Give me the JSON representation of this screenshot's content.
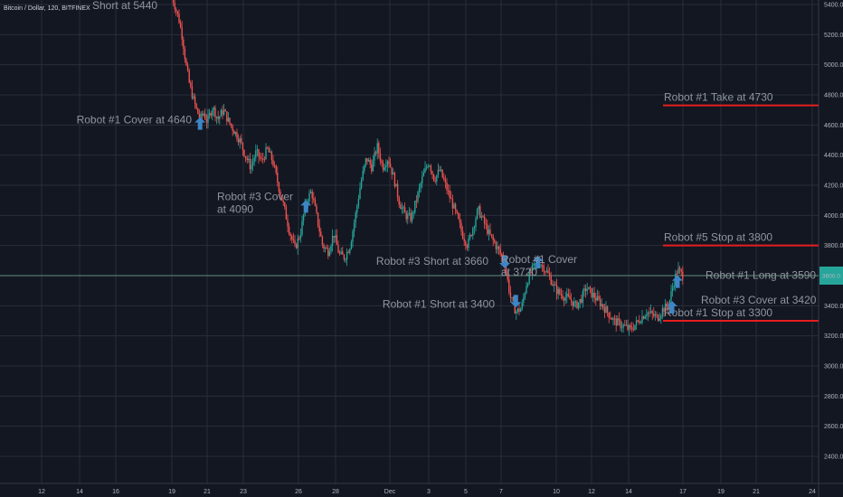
{
  "chart_data": {
    "type": "candlestick",
    "title": "Bitcoin / Dollar, 120, BITFINEX",
    "ylim": [
      2300,
      5600
    ],
    "y_ticks": [
      "5400.0",
      "5200.0",
      "5000.0",
      "4800.0",
      "4600.0",
      "4400.0",
      "4200.0",
      "4000.0",
      "3800.0",
      "3600.0",
      "3400.0",
      "3200.0",
      "3000.0",
      "2800.0",
      "2600.0",
      "2400.0"
    ],
    "x_ticks": [
      "12",
      "14",
      "16",
      "19",
      "21",
      "23",
      "26",
      "28",
      "Dec",
      "3",
      "5",
      "7",
      "10",
      "12",
      "14",
      "17",
      "19",
      "21",
      "24"
    ],
    "current_price": 3600,
    "current_price_label": "3600.0",
    "colors": {
      "bg": "#131722",
      "grid": "#2a2e39",
      "up": "#26a69a",
      "down": "#ef5350",
      "line": "#e61e1e",
      "arrow": "#3d86c6",
      "price_line": "#608f7d"
    },
    "series": [
      {
        "name": "",
        "close_path": [
          [
            19.0,
            5460
          ],
          [
            19.2,
            5380
          ],
          [
            19.4,
            5300
          ],
          [
            19.6,
            5180
          ],
          [
            19.8,
            5000
          ],
          [
            20.0,
            4870
          ],
          [
            20.2,
            4780
          ],
          [
            20.4,
            4700
          ],
          [
            20.6,
            4640
          ],
          [
            20.8,
            4680
          ],
          [
            21.0,
            4620
          ],
          [
            21.3,
            4720
          ],
          [
            21.6,
            4640
          ],
          [
            21.9,
            4700
          ],
          [
            22.2,
            4620
          ],
          [
            22.5,
            4560
          ],
          [
            22.8,
            4500
          ],
          [
            23.1,
            4400
          ],
          [
            23.4,
            4320
          ],
          [
            23.7,
            4420
          ],
          [
            24.0,
            4360
          ],
          [
            24.3,
            4440
          ],
          [
            24.6,
            4360
          ],
          [
            24.9,
            4200
          ],
          [
            25.2,
            4060
          ],
          [
            25.5,
            3900
          ],
          [
            25.8,
            3780
          ],
          [
            26.1,
            3880
          ],
          [
            26.4,
            4090
          ],
          [
            26.7,
            4160
          ],
          [
            27.0,
            3980
          ],
          [
            27.3,
            3800
          ],
          [
            27.6,
            3760
          ],
          [
            27.9,
            3880
          ],
          [
            28.2,
            3740
          ],
          [
            28.5,
            3720
          ],
          [
            28.8,
            3800
          ],
          [
            29.1,
            4000
          ],
          [
            29.4,
            4220
          ],
          [
            29.7,
            4380
          ],
          [
            30.0,
            4320
          ],
          [
            30.3,
            4460
          ],
          [
            30.6,
            4320
          ],
          [
            30.9,
            4380
          ],
          [
            31.2,
            4250
          ],
          [
            31.5,
            4080
          ],
          [
            31.8,
            4000
          ],
          [
            32.1,
            3980
          ],
          [
            32.4,
            4120
          ],
          [
            32.7,
            4260
          ],
          [
            33.0,
            4360
          ],
          [
            33.3,
            4240
          ],
          [
            33.6,
            4300
          ],
          [
            33.9,
            4200
          ],
          [
            34.2,
            4100
          ],
          [
            34.5,
            4000
          ],
          [
            34.8,
            3880
          ],
          [
            35.1,
            3800
          ],
          [
            35.4,
            3920
          ],
          [
            35.7,
            4040
          ],
          [
            36.0,
            3960
          ],
          [
            36.3,
            3880
          ],
          [
            36.6,
            3820
          ],
          [
            36.9,
            3760
          ],
          [
            37.2,
            3680
          ],
          [
            37.5,
            3460
          ],
          [
            37.8,
            3360
          ],
          [
            38.1,
            3380
          ],
          [
            38.4,
            3560
          ],
          [
            38.7,
            3640
          ],
          [
            39.0,
            3700
          ],
          [
            39.3,
            3660
          ],
          [
            39.6,
            3600
          ],
          [
            39.9,
            3520
          ],
          [
            40.2,
            3480
          ],
          [
            40.5,
            3460
          ],
          [
            40.8,
            3440
          ],
          [
            41.1,
            3400
          ],
          [
            41.4,
            3440
          ],
          [
            41.7,
            3520
          ],
          [
            42.0,
            3480
          ],
          [
            42.3,
            3440
          ],
          [
            42.6,
            3400
          ],
          [
            42.9,
            3350
          ],
          [
            43.2,
            3300
          ],
          [
            43.5,
            3280
          ],
          [
            43.8,
            3260
          ],
          [
            44.1,
            3240
          ],
          [
            44.4,
            3280
          ],
          [
            44.7,
            3320
          ],
          [
            45.0,
            3360
          ],
          [
            45.3,
            3340
          ],
          [
            45.6,
            3320
          ],
          [
            45.9,
            3380
          ],
          [
            46.2,
            3400
          ],
          [
            46.5,
            3560
          ],
          [
            46.7,
            3640
          ],
          [
            47.0,
            3600
          ]
        ]
      }
    ],
    "hlines": [
      {
        "label": "Robot #1 Take at 4730",
        "value": 4730,
        "x_start": 45.9
      },
      {
        "label": "Robot #5 Stop at 3800",
        "value": 3800,
        "x_start": 45.9
      },
      {
        "label": "Robot #1 Stop at 3300",
        "value": 3300,
        "x_start": 45.9
      }
    ],
    "annotations": [
      {
        "text": "Short at 5440",
        "price": 5440,
        "x": 19.0,
        "dir": "none",
        "text_x": 18.0
      },
      {
        "text": "Robot #1 Cover at 4640",
        "price": 4640,
        "x": 20.6,
        "dir": "up",
        "text_x": 20.3
      },
      {
        "text": "Robot #3 Cover",
        "text2": "at 4090",
        "price": 4090,
        "x": 26.4,
        "dir": "up",
        "text_x": 25.9
      },
      {
        "text": "Robot #3 Short at 3660",
        "price": 3660,
        "x": 37.2,
        "dir": "down",
        "text_x": 36.9
      },
      {
        "text": "Robot #1 Cover",
        "text2": "at 3720",
        "price": 3720,
        "x": 39.0,
        "dir": "up",
        "text_x": 37.7
      },
      {
        "text": "Robot #1 Short at 3400",
        "price": 3400,
        "x": 37.8,
        "dir": "down",
        "text_x": 37.5
      },
      {
        "text": "Robot #1 Long at 3590",
        "price": 3590,
        "x": 46.7,
        "dir": "up",
        "text_x": 47.0
      },
      {
        "text": "Robot #3 Cover at 3420",
        "price": 3420,
        "x": 46.4,
        "dir": "up",
        "text_x": 46.8
      }
    ]
  }
}
